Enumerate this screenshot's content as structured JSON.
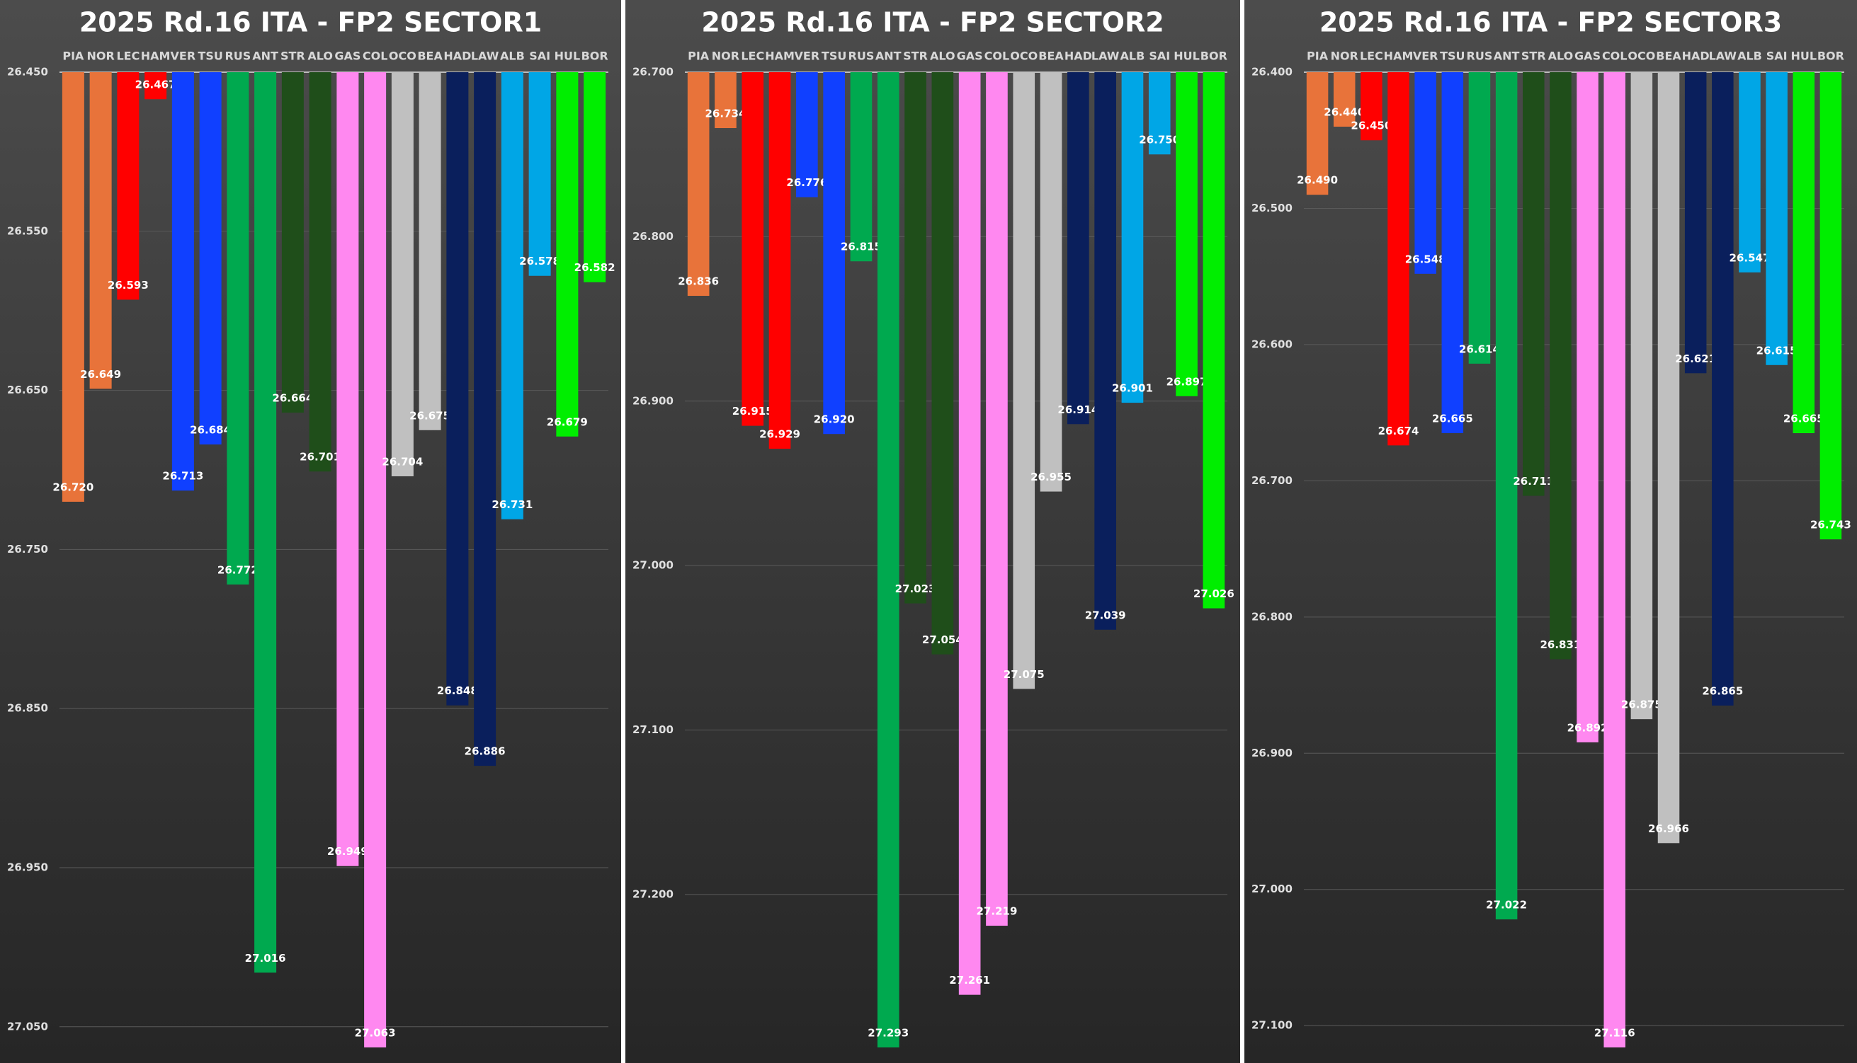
{
  "chart_data": [
    {
      "type": "bar",
      "title": "2025 Rd.16 ITA - FP2 SECTOR1",
      "categories": [
        "PIA",
        "NOR",
        "LEC",
        "HAM",
        "VER",
        "TSU",
        "RUS",
        "ANT",
        "STR",
        "ALO",
        "GAS",
        "COL",
        "OCO",
        "BEA",
        "HAD",
        "LAW",
        "ALB",
        "SAI",
        "HUL",
        "BOR"
      ],
      "colors": [
        "#e8733a",
        "#e8733a",
        "#ff0000",
        "#ff0000",
        "#1040ff",
        "#1040ff",
        "#00a94f",
        "#00a94f",
        "#1f4e1a",
        "#1f4e1a",
        "#ff88f0",
        "#ff88f0",
        "#c0c0c0",
        "#c0c0c0",
        "#0a1f5c",
        "#0a1f5c",
        "#00a6e6",
        "#00a6e6",
        "#00ee00",
        "#00ee00"
      ],
      "values": [
        26.72,
        26.649,
        26.593,
        26.467,
        26.713,
        26.684,
        26.772,
        27.016,
        26.664,
        26.701,
        26.949,
        27.063,
        26.704,
        26.675,
        26.848,
        26.886,
        26.731,
        26.578,
        26.679,
        26.582
      ],
      "value_labels": [
        "26.720",
        "26.649",
        "26.593",
        "26.467",
        "26.713",
        "26.684",
        "26.772",
        "27.016",
        "26.664",
        "26.701",
        "26.949",
        "27.063",
        "26.704",
        "26.675",
        "26.848",
        "26.886",
        "26.731",
        "26.578",
        "26.679",
        "26.582"
      ],
      "ylim": [
        26.45,
        27.063
      ],
      "inverted_y": true,
      "grid": true,
      "yticks": [
        {
          "value": 26.45,
          "label": "26.450"
        },
        {
          "value": 26.55,
          "label": "26.550"
        },
        {
          "value": 26.65,
          "label": "26.650"
        },
        {
          "value": 26.75,
          "label": "26.750"
        },
        {
          "value": 26.85,
          "label": "26.850"
        },
        {
          "value": 26.95,
          "label": "26.950"
        },
        {
          "value": 27.05,
          "label": "27.050"
        }
      ]
    },
    {
      "type": "bar",
      "title": "2025 Rd.16 ITA - FP2 SECTOR2",
      "categories": [
        "PIA",
        "NOR",
        "LEC",
        "HAM",
        "VER",
        "TSU",
        "RUS",
        "ANT",
        "STR",
        "ALO",
        "GAS",
        "COL",
        "OCO",
        "BEA",
        "HAD",
        "LAW",
        "ALB",
        "SAI",
        "HUL",
        "BOR"
      ],
      "colors": [
        "#e8733a",
        "#e8733a",
        "#ff0000",
        "#ff0000",
        "#1040ff",
        "#1040ff",
        "#00a94f",
        "#00a94f",
        "#1f4e1a",
        "#1f4e1a",
        "#ff88f0",
        "#ff88f0",
        "#c0c0c0",
        "#c0c0c0",
        "#0a1f5c",
        "#0a1f5c",
        "#00a6e6",
        "#00a6e6",
        "#00ee00",
        "#00ee00"
      ],
      "values": [
        26.836,
        26.734,
        26.915,
        26.929,
        26.776,
        26.92,
        26.815,
        27.293,
        27.023,
        27.054,
        27.261,
        27.219,
        27.075,
        26.955,
        26.914,
        27.039,
        26.901,
        26.75,
        26.897,
        27.026
      ],
      "value_labels": [
        "26.836",
        "26.734",
        "26.915",
        "26.929",
        "26.776",
        "26.920",
        "26.815",
        "27.293",
        "27.023",
        "27.054",
        "27.261",
        "27.219",
        "27.075",
        "26.955",
        "26.914",
        "27.039",
        "26.901",
        "26.750",
        "26.897",
        "27.026"
      ],
      "ylim": [
        26.7,
        27.293
      ],
      "inverted_y": true,
      "grid": true,
      "yticks": [
        {
          "value": 26.7,
          "label": "26.700"
        },
        {
          "value": 26.8,
          "label": "26.800"
        },
        {
          "value": 26.9,
          "label": "26.900"
        },
        {
          "value": 27.0,
          "label": "27.000"
        },
        {
          "value": 27.1,
          "label": "27.100"
        },
        {
          "value": 27.2,
          "label": "27.200"
        }
      ]
    },
    {
      "type": "bar",
      "title": "2025 Rd.16 ITA - FP2 SECTOR3",
      "categories": [
        "PIA",
        "NOR",
        "LEC",
        "HAM",
        "VER",
        "TSU",
        "RUS",
        "ANT",
        "STR",
        "ALO",
        "GAS",
        "COL",
        "OCO",
        "BEA",
        "HAD",
        "LAW",
        "ALB",
        "SAI",
        "HUL",
        "BOR"
      ],
      "colors": [
        "#e8733a",
        "#e8733a",
        "#ff0000",
        "#ff0000",
        "#1040ff",
        "#1040ff",
        "#00a94f",
        "#00a94f",
        "#1f4e1a",
        "#1f4e1a",
        "#ff88f0",
        "#ff88f0",
        "#c0c0c0",
        "#c0c0c0",
        "#0a1f5c",
        "#0a1f5c",
        "#00a6e6",
        "#00a6e6",
        "#00ee00",
        "#00ee00"
      ],
      "values": [
        26.49,
        26.44,
        26.45,
        26.674,
        26.548,
        26.665,
        26.614,
        27.022,
        26.711,
        26.831,
        26.892,
        27.116,
        26.875,
        26.966,
        26.621,
        26.865,
        26.547,
        26.615,
        26.665,
        26.743
      ],
      "value_labels": [
        "26.490",
        "26.440",
        "26.450",
        "26.674",
        "26.548",
        "26.665",
        "26.614",
        "27.022",
        "26.711",
        "26.831",
        "26.892",
        "27.116",
        "26.875",
        "26.966",
        "26.621",
        "26.865",
        "26.547",
        "26.615",
        "26.665",
        "26.743"
      ],
      "ylim": [
        26.4,
        27.116
      ],
      "inverted_y": true,
      "grid": true,
      "yticks": [
        {
          "value": 26.4,
          "label": "26.400"
        },
        {
          "value": 26.5,
          "label": "26.500"
        },
        {
          "value": 26.6,
          "label": "26.600"
        },
        {
          "value": 26.7,
          "label": "26.700"
        },
        {
          "value": 26.8,
          "label": "26.800"
        },
        {
          "value": 26.9,
          "label": "26.900"
        },
        {
          "value": 27.0,
          "label": "27.000"
        },
        {
          "value": 27.1,
          "label": "27.100"
        }
      ]
    }
  ]
}
